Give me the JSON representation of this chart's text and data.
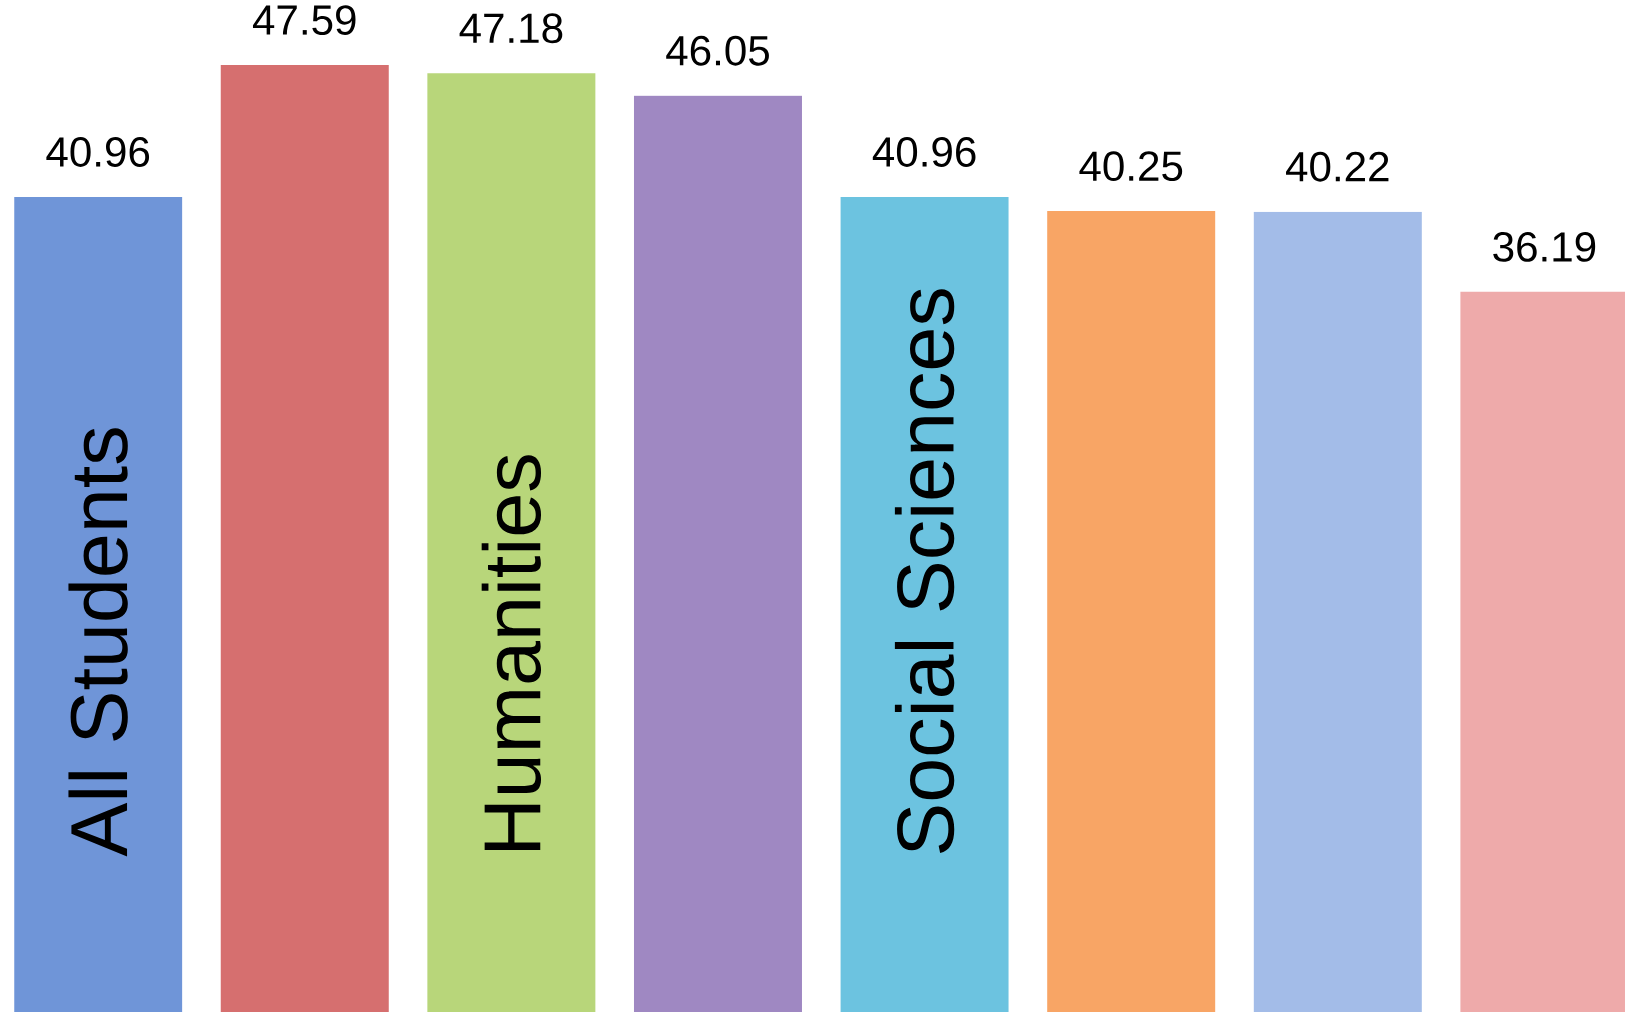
{
  "chart_data": {
    "type": "bar",
    "categories": [
      "All Students",
      null,
      "Humanities",
      null,
      "Social Sciences",
      null,
      null,
      null
    ],
    "values": [
      40.96,
      47.59,
      47.18,
      46.05,
      40.96,
      40.25,
      40.22,
      36.19
    ],
    "colors": [
      "#6f95d8",
      "#d66f6f",
      "#b8d67a",
      "#9f88c2",
      "#6cc3e0",
      "#f8a565",
      "#a3bce8",
      "#eeaaaa"
    ],
    "data_labels": true
  }
}
